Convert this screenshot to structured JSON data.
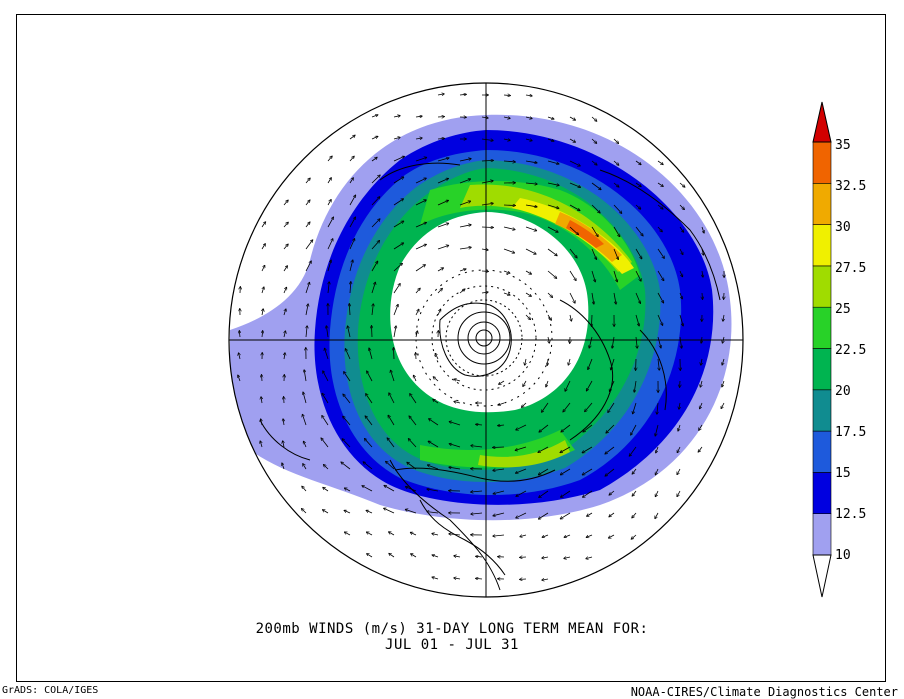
{
  "title": {
    "line1": "200mb WINDS (m/s)   31-DAY LONG TERM MEAN FOR:",
    "line2": "JUL 01 - JUL 31"
  },
  "footer": {
    "left": "GrADS: COLA/IGES",
    "right": "NOAA-CIRES/Climate Diagnostics Center"
  },
  "colorbar": {
    "levels": [
      "10",
      "12.5",
      "15",
      "17.5",
      "20",
      "22.5",
      "25",
      "27.5",
      "30",
      "32.5",
      "35"
    ],
    "colors": [
      "#a0a0f0",
      "#0000e0",
      "#1e5adc",
      "#108c90",
      "#00b450",
      "#28d228",
      "#a0dc00",
      "#f0f000",
      "#f0aa00",
      "#f06400",
      "#d20000"
    ]
  },
  "map": {
    "projection": "north-polar-stereographic",
    "shading_colors": {
      "c10": "#a0a0f0",
      "c12": "#0000e0",
      "c15": "#1e5adc",
      "c17": "#108c90",
      "c20": "#00b450",
      "c22": "#28d228",
      "c25": "#a0dc00",
      "c27": "#f0f000",
      "c30": "#f0aa00",
      "c32": "#f06400"
    }
  }
}
